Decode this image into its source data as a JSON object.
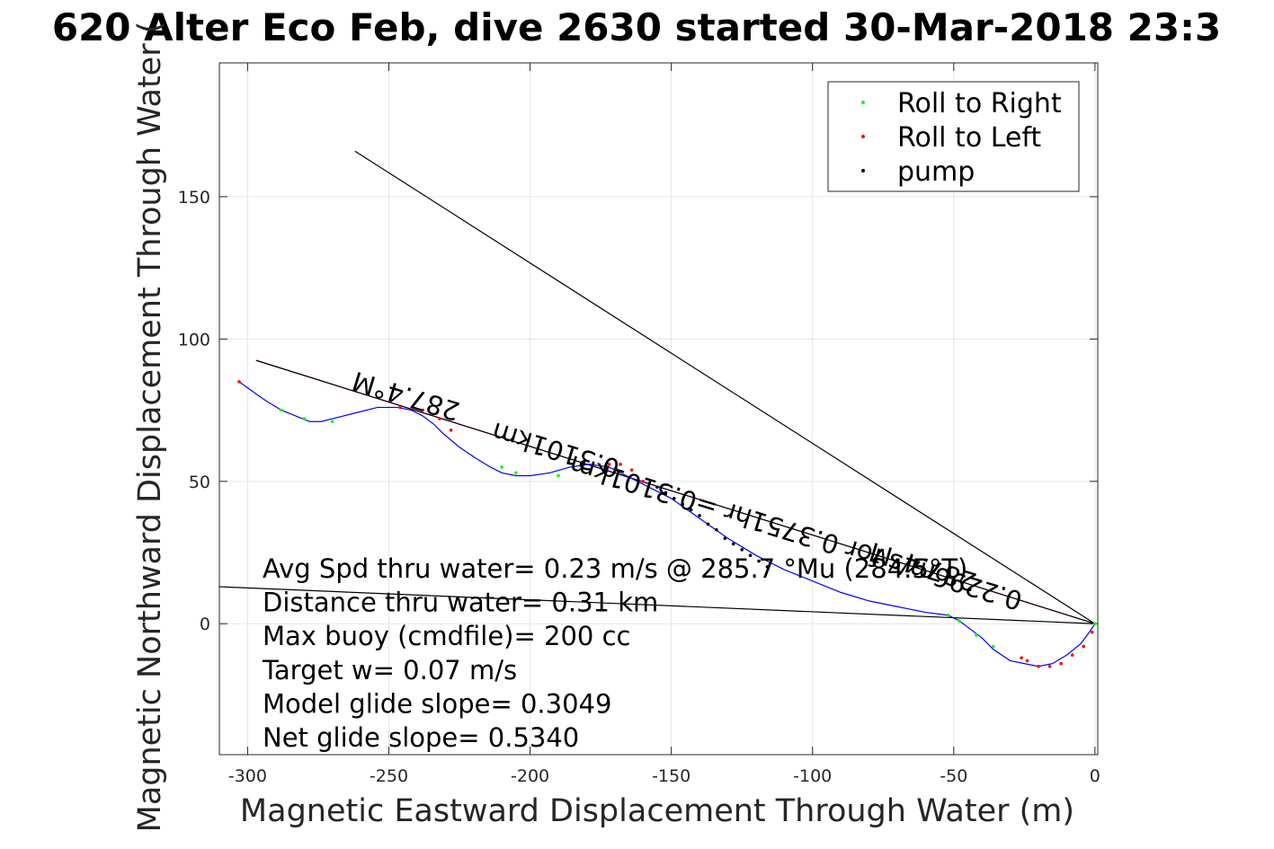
{
  "chart_data": {
    "type": "scatter",
    "title": "620 Alter Eco Feb, dive 2630 started 30-Mar-2018 23:3",
    "xlabel": "Magnetic Eastward Displacement Through Water (m)",
    "ylabel": "Magnetic Northward Displacement Through Water (",
    "xlim": [
      -310,
      1
    ],
    "ylim": [
      -46,
      197
    ],
    "xticks": [
      -300,
      -250,
      -200,
      -150,
      -100,
      -50,
      0
    ],
    "yticks": [
      0,
      50,
      100,
      150
    ],
    "grid": true,
    "legend_position": "top-right",
    "legend": [
      {
        "label": "Roll to Right",
        "color": "#00ff00"
      },
      {
        "label": "Roll to Left",
        "color": "#ff0000"
      },
      {
        "label": "pump",
        "color": "#000000"
      }
    ],
    "track": {
      "name": "",
      "color": "#0000ff",
      "x": [
        -303,
        -296,
        -293,
        -288,
        -283,
        -278,
        -274,
        -270,
        -262,
        -254,
        -247,
        -242,
        -238,
        -234,
        -231,
        -225,
        -219,
        -214,
        -210,
        -205,
        -200,
        -193,
        -186,
        -179,
        -172,
        -166,
        -160,
        -150,
        -140,
        -130,
        -120,
        -110,
        -100,
        -90,
        -80,
        -70,
        -60,
        -52,
        -48,
        -44,
        -40,
        -36,
        -30,
        -25,
        -20,
        -15,
        -10,
        -5,
        -2,
        0
      ],
      "y": [
        85,
        80,
        78,
        75,
        73,
        71,
        71,
        72,
        74,
        76,
        76,
        75,
        73,
        70,
        67,
        62,
        58,
        55,
        53,
        52,
        52,
        53,
        55,
        56,
        55,
        52,
        49,
        44,
        37,
        30,
        24,
        19,
        15,
        11,
        8,
        6,
        4,
        3,
        1,
        -2,
        -5,
        -9,
        -13,
        -14,
        -15,
        -14,
        -11,
        -7,
        -3,
        0
      ]
    },
    "roll_right_points": {
      "color": "#00ff00",
      "x": [
        -288,
        -280,
        -270,
        -210,
        -205,
        -190,
        -52,
        -48,
        -42,
        -36,
        0
      ],
      "y": [
        75,
        72,
        71,
        55,
        53,
        52,
        3,
        1,
        -4,
        -8,
        0
      ]
    },
    "roll_left_points": {
      "color": "#ff0000",
      "x": [
        -303,
        -246,
        -238,
        -232,
        -228,
        -172,
        -168,
        -164,
        -160,
        -26,
        -24,
        -20,
        -16,
        -12,
        -8,
        -4,
        -1
      ],
      "y": [
        85,
        76,
        75,
        72,
        68,
        56,
        56,
        54,
        50,
        -12,
        -13,
        -15,
        -15,
        -14,
        -11,
        -8,
        -3
      ]
    },
    "pump_points": {
      "color": "#000000",
      "x": [
        -155,
        -152,
        -149,
        -146,
        -143,
        -140,
        -137,
        -134,
        -131,
        -128,
        -125,
        -122,
        -119,
        -116
      ],
      "y": [
        48,
        46,
        44,
        42,
        40,
        38,
        35,
        33,
        30,
        28,
        26,
        24,
        22,
        20
      ]
    },
    "lines": [
      {
        "name": "",
        "color": "#ff00ff",
        "x": [
          -297,
          0
        ],
        "y": [
          92.5,
          0
        ]
      },
      {
        "name": "",
        "color": "#000000",
        "x": [
          -297,
          0
        ],
        "y": [
          92.5,
          0
        ]
      },
      {
        "name": "",
        "color": "#000000",
        "x": [
          -262,
          0
        ],
        "y": [
          166,
          0
        ]
      },
      {
        "name": "",
        "color": "#000000",
        "x": [
          -310,
          0
        ],
        "y": [
          13,
          0
        ]
      }
    ],
    "rotated_labels": [
      {
        "text": "287.4°M",
        "x": -243,
        "y": 83,
        "angle": 197
      },
      {
        "text": "0.3101km",
        "x": -190,
        "y": 64,
        "angle": 197
      },
      {
        "text": "0.2296m/s for 0.3751hr =0.3101km",
        "x": -105,
        "y": 35,
        "angle": 197
      },
      {
        "text": "287.4°M",
        "x": -60,
        "y": 23,
        "angle": 197
      }
    ],
    "annotations": [
      "Avg Spd thru water=  0.23 m/s @ 285.7 °Mu (284.5°T)",
      "Distance thru water=  0.31 km",
      "Max buoy (cmdfile)= 200 cc",
      "Target w= 0.07 m/s",
      "Model glide slope= 0.3049",
      "Net glide slope= 0.5340"
    ]
  }
}
